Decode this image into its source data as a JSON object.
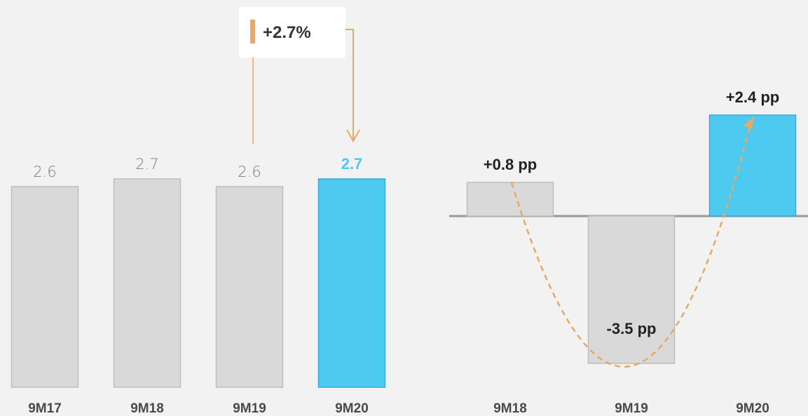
{
  "colors": {
    "background": "#f2f2f2",
    "bar_gray": "#d9d9d9",
    "bar_gray_border": "#bdbdbd",
    "highlight": "#4ec9f0",
    "highlight_border": "#3aa8e0",
    "accent_orange": "#e8a866",
    "axis": "#999999"
  },
  "callout": {
    "label": "+2.7%"
  },
  "chart_data": [
    {
      "type": "bar",
      "categories": [
        "9M17",
        "9M18",
        "9M19",
        "9M20"
      ],
      "values": [
        2.6,
        2.7,
        2.6,
        2.7
      ],
      "value_labels": [
        "2.6",
        "2.7",
        "2.6",
        "2.7"
      ],
      "highlight_index": 3
    },
    {
      "type": "bar",
      "categories": [
        "9M18",
        "9M19",
        "9M20"
      ],
      "values": [
        0.8,
        -3.5,
        2.4
      ],
      "value_labels": [
        "+0.8 pp",
        "-3.5 pp",
        "+2.4 pp"
      ],
      "highlight_index": 2
    }
  ]
}
